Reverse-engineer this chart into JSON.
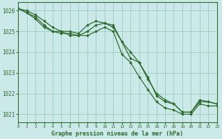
{
  "title": "Graphe pression niveau de la mer (hPa)",
  "background_color": "#cce9e9",
  "grid_color": "#99ccbb",
  "line_color": "#2d6b2d",
  "marker_color": "#2d6b2d",
  "xmin": 0,
  "xmax": 23,
  "ymin": 1020.6,
  "ymax": 1026.4,
  "yticks": [
    1021,
    1022,
    1023,
    1024,
    1025,
    1026
  ],
  "xticks": [
    0,
    1,
    2,
    3,
    4,
    5,
    6,
    7,
    8,
    9,
    10,
    11,
    12,
    13,
    14,
    15,
    16,
    17,
    18,
    19,
    20,
    21,
    22,
    23
  ],
  "series": [
    [
      1026.1,
      1026.0,
      1025.8,
      1025.5,
      1025.2,
      1025.0,
      1025.0,
      1024.9,
      1025.3,
      1025.5,
      1025.4,
      1025.2,
      1024.5,
      1023.7,
      1023.5,
      1022.8,
      1021.9,
      1021.6,
      1021.5,
      1021.1,
      1021.1,
      1021.7,
      1021.6,
      1021.5
    ],
    [
      1026.1,
      1025.9,
      1025.6,
      1025.2,
      1025.0,
      1024.9,
      1024.9,
      1024.8,
      1024.8,
      1025.0,
      1025.2,
      1025.0,
      1023.9,
      1023.5,
      1022.8,
      1022.2,
      1021.6,
      1021.3,
      1021.2,
      1021.0,
      1021.0,
      1021.5,
      1021.4,
      1021.4
    ],
    [
      1026.1,
      1025.9,
      1025.7,
      1025.3,
      1025.0,
      1025.0,
      1024.8,
      1024.8,
      1025.0,
      1025.3,
      1025.4,
      1025.3,
      1024.5,
      1024.0,
      1023.5,
      1022.7,
      1022.0,
      1021.7,
      1021.5,
      1021.1,
      1021.1,
      1021.6,
      1021.6,
      1021.5
    ]
  ]
}
